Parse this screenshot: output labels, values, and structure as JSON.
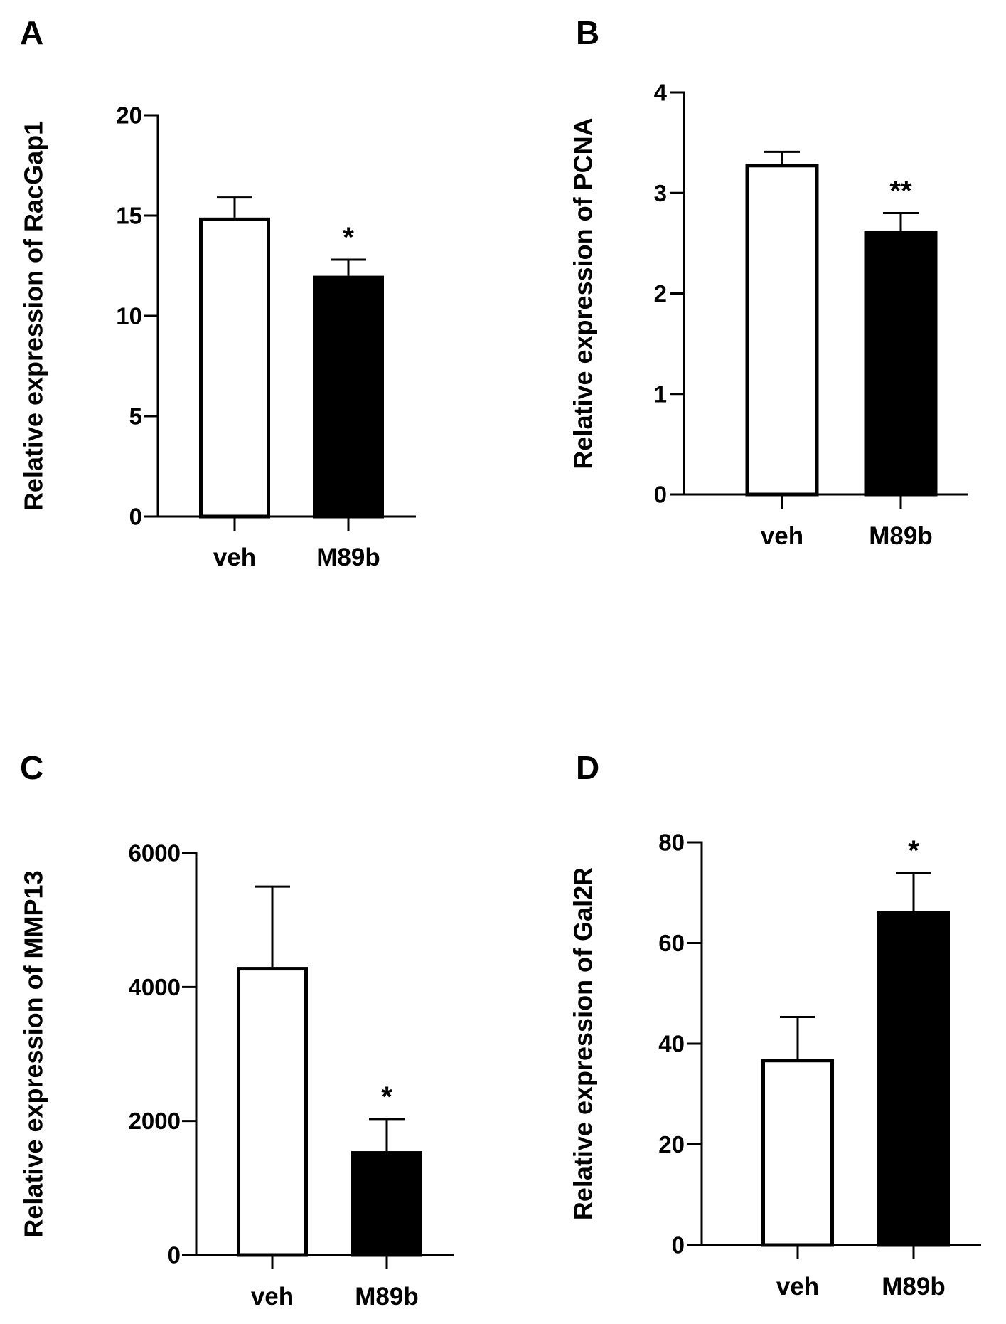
{
  "figure_labels": {
    "sig_star": "*"
  },
  "chart_data": [
    {
      "panel": "A",
      "type": "bar",
      "title": "",
      "xlabel": "",
      "ylabel": "Relative expression of RacGap1",
      "categories": [
        "veh",
        "M89b"
      ],
      "values": [
        14.9,
        12.0
      ],
      "errors": [
        1.0,
        0.8
      ],
      "bar_fills": [
        "#ffffff",
        "#000000"
      ],
      "significance": [
        "",
        "*"
      ],
      "ylim": [
        0,
        20
      ],
      "yticks": [
        0,
        5,
        10,
        15,
        20
      ]
    },
    {
      "panel": "B",
      "type": "bar",
      "title": "",
      "xlabel": "",
      "ylabel": "Relative expression of PCNA",
      "categories": [
        "veh",
        "M89b"
      ],
      "values": [
        3.29,
        2.62
      ],
      "errors": [
        0.12,
        0.18
      ],
      "bar_fills": [
        "#ffffff",
        "#000000"
      ],
      "significance": [
        "",
        "**"
      ],
      "ylim": [
        0,
        4
      ],
      "yticks": [
        0,
        1,
        2,
        3,
        4
      ]
    },
    {
      "panel": "C",
      "type": "bar",
      "title": "",
      "xlabel": "",
      "ylabel": "Relative expression of MMP13",
      "categories": [
        "veh",
        "M89b"
      ],
      "values": [
        4300,
        1550
      ],
      "errors": [
        1200,
        480
      ],
      "bar_fills": [
        "#ffffff",
        "#000000"
      ],
      "significance": [
        "",
        "*"
      ],
      "ylim": [
        0,
        6000
      ],
      "yticks": [
        0,
        2000,
        4000,
        6000
      ]
    },
    {
      "panel": "D",
      "type": "bar",
      "title": "",
      "xlabel": "",
      "ylabel": "Relative expression of Gal2R",
      "categories": [
        "veh",
        "M89b"
      ],
      "values": [
        37,
        66.3
      ],
      "errors": [
        8.3,
        7.6
      ],
      "bar_fills": [
        "#ffffff",
        "#000000"
      ],
      "significance": [
        "",
        "*"
      ],
      "ylim": [
        0,
        80
      ],
      "yticks": [
        0,
        20,
        40,
        60,
        80
      ]
    }
  ]
}
